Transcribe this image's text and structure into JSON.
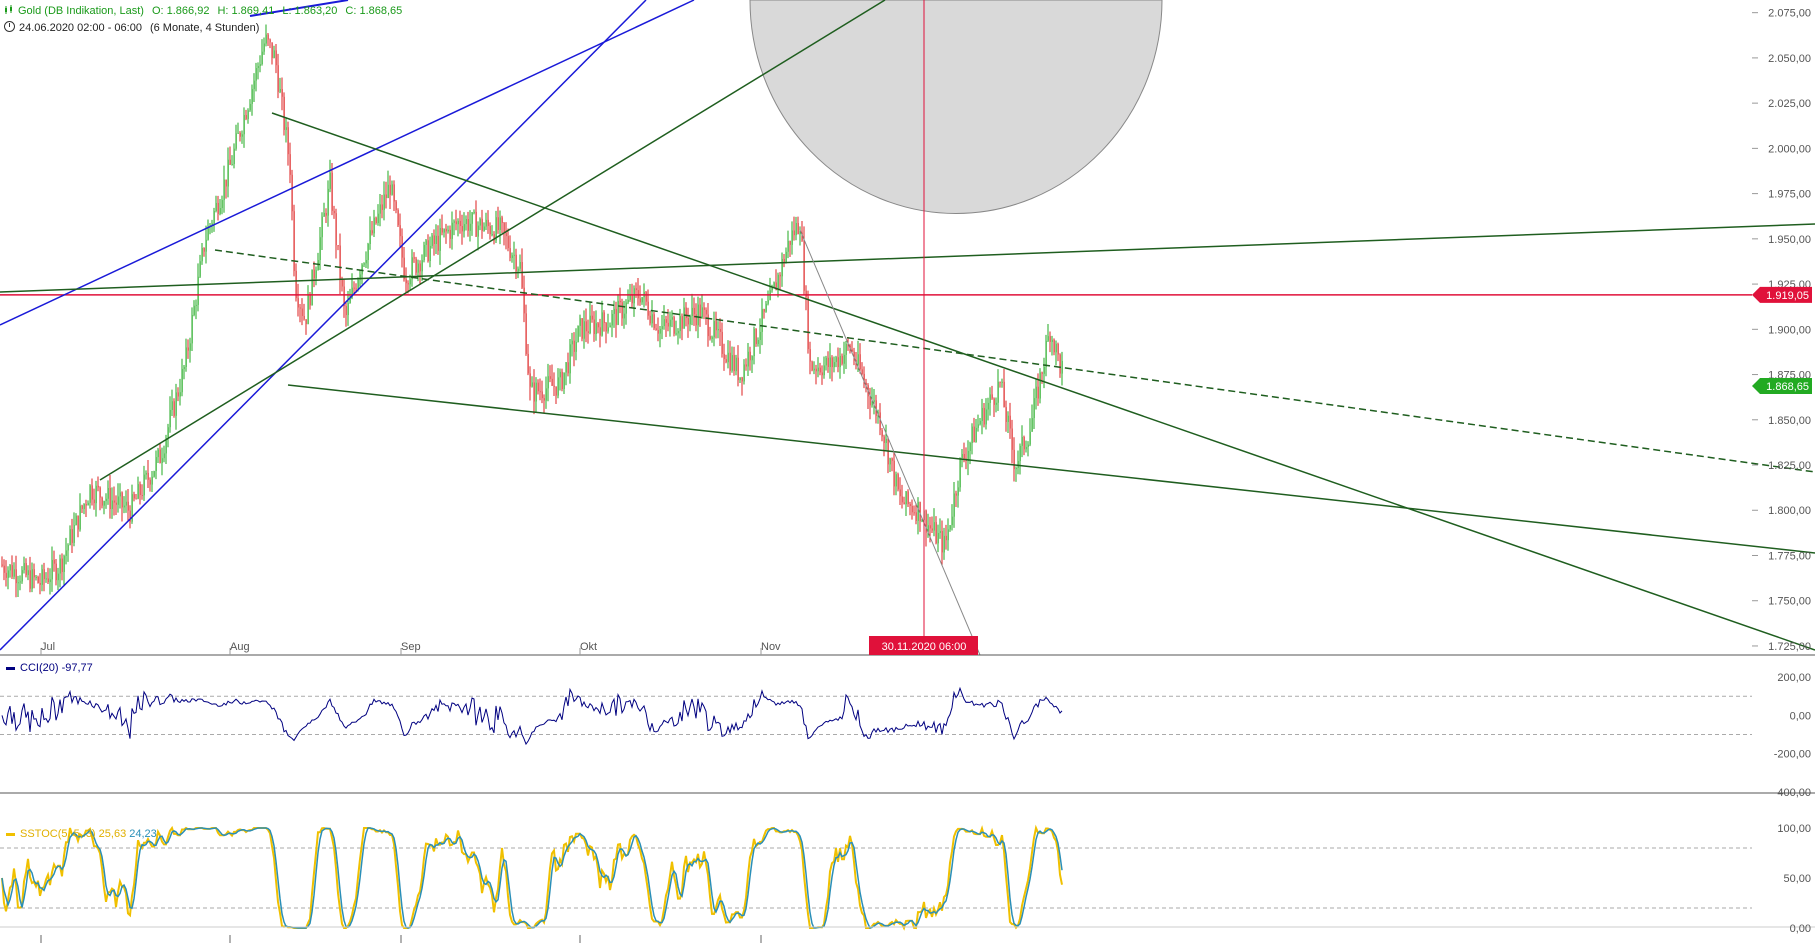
{
  "header": {
    "instrument": "Gold (DB Indikation, Last)",
    "open": "O: 1.866,92",
    "high": "H: 1.869,41",
    "low": "L: 1.863,20",
    "close": "C: 1.868,65",
    "period": "24.06.2020 02:00 - 06:00",
    "range": "(6 Monate, 4 Stunden)"
  },
  "crosshair_date_label": "30.11.2020 06:00",
  "indicators": {
    "cci": {
      "name": "CCI(20)",
      "value": "-97,77",
      "color": "#000080"
    },
    "sstoc": {
      "name": "SSTOC(5, 5, 3)",
      "k_value": "25,63",
      "d_value": "24,23",
      "k_color": "#f0c000",
      "d_color": "#2a8fb8"
    }
  },
  "colors": {
    "up": "#22aa22",
    "down": "#dd2222",
    "trend_green": "#1f5e1f",
    "trend_blue": "#1a1ad8",
    "hline_red": "#e0113a"
  },
  "chart_data": [
    {
      "type": "candlestick",
      "title": "Gold (DB Indikation, Last)",
      "x_axis_labels": [
        "Jul",
        "Aug",
        "Sep",
        "Okt",
        "Nov"
      ],
      "y_ticks": [
        "1.725,00",
        "1.750,00",
        "1.775,00",
        "1.800,00",
        "1.825,00",
        "1.850,00",
        "1.875,00",
        "1.900,00",
        "1.925,00",
        "1.950,00",
        "1.975,00",
        "2.000,00",
        "2.025,00",
        "2.050,00",
        "2.075,00"
      ],
      "y_range": [
        1720,
        2082
      ],
      "price_path_monthly_approx": [
        {
          "date": "Jul",
          "value": 1770
        },
        {
          "date": "mid-Jul",
          "value": 1805
        },
        {
          "date": "end-Jul",
          "value": 1960
        },
        {
          "date": "Aug early",
          "value": 2065
        },
        {
          "date": "mid-Aug",
          "value": 1940
        },
        {
          "date": "Sep",
          "value": 1940
        },
        {
          "date": "end-Sep",
          "value": 1865
        },
        {
          "date": "Okt",
          "value": 1905
        },
        {
          "date": "early-Nov",
          "value": 1955
        },
        {
          "date": "mid-Nov",
          "value": 1885
        },
        {
          "date": "30.11.",
          "value": 1770
        },
        {
          "date": "Dez",
          "value": 1900
        },
        {
          "date": "last",
          "value": 1868.65
        }
      ],
      "price_markers": [
        {
          "label": "1.919,05",
          "value": 1919.05,
          "color": "#e0113a"
        },
        {
          "label": "1.868,65",
          "value": 1868.65,
          "color": "#22aa22"
        }
      ]
    },
    {
      "type": "line",
      "title": "CCI(20)",
      "y_ticks": [
        "200,00",
        "0,00",
        "-200,00",
        "-400,00"
      ],
      "y_range": [
        -400,
        310
      ],
      "reference_lines": [
        100,
        -100
      ]
    },
    {
      "type": "line",
      "title": "SSTOC(5, 5, 3)",
      "y_ticks": [
        "100,00",
        "50,00",
        "0,00"
      ],
      "y_range": [
        0,
        100
      ],
      "reference_lines": [
        80,
        20
      ]
    }
  ]
}
